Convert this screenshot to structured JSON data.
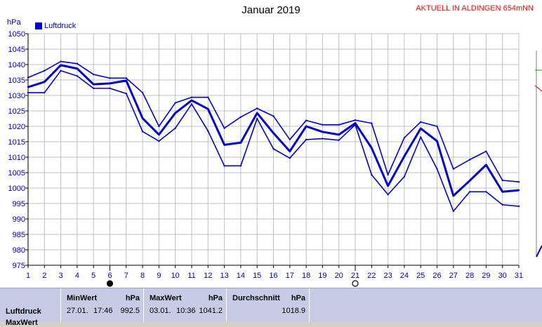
{
  "header": {
    "title": "Januar 2019",
    "aktuell": "AKTUELL IN ALDINGEN 654mNN",
    "unit": "hPa",
    "legend_label": "Luftdruck"
  },
  "colors": {
    "series": "#0000cc",
    "grid": "#c0c0c0",
    "aktuell": "#ff0000",
    "stats_bg": "#c6cbe6"
  },
  "chart_data": {
    "type": "line",
    "title": "Januar 2019",
    "ylabel": "hPa",
    "ylim": [
      975,
      1050
    ],
    "yticks": [
      975,
      980,
      985,
      990,
      995,
      1000,
      1005,
      1010,
      1015,
      1020,
      1025,
      1030,
      1035,
      1040,
      1045,
      1050
    ],
    "x": [
      1,
      2,
      3,
      4,
      5,
      6,
      7,
      8,
      9,
      10,
      11,
      12,
      13,
      14,
      15,
      16,
      17,
      18,
      19,
      20,
      21,
      22,
      23,
      24,
      25,
      26,
      27,
      28,
      29,
      30,
      31
    ],
    "grid": true,
    "legend_position": "top-left",
    "moon_markers": [
      {
        "day": 6,
        "phase": "new"
      },
      {
        "day": 21,
        "phase": "full"
      }
    ],
    "series": [
      {
        "name": "Luftdruck",
        "role": "max",
        "values": [
          1035.8,
          1038.0,
          1041.0,
          1040.3,
          1036.8,
          1035.6,
          1035.6,
          1030.9,
          1020.0,
          1027.6,
          1029.4,
          1029.4,
          1019.4,
          1023.0,
          1025.8,
          1023.3,
          1015.7,
          1021.9,
          1020.5,
          1020.5,
          1022.0,
          1021.0,
          1004.3,
          1016.3,
          1021.4,
          1020.0,
          1006.2,
          1009.2,
          1011.9,
          1002.5,
          1002.0
        ]
      },
      {
        "name": "Luftdruck",
        "role": "mittel",
        "values": [
          1032.7,
          1034.4,
          1039.8,
          1038.7,
          1033.6,
          1033.9,
          1034.8,
          1022.6,
          1017.3,
          1024.3,
          1028.4,
          1025.6,
          1014.0,
          1014.7,
          1024.3,
          1017.8,
          1011.9,
          1020.0,
          1018.2,
          1017.3,
          1021.0,
          1013.0,
          1000.7,
          1010.3,
          1019.3,
          1015.2,
          997.5,
          1002.4,
          1007.5,
          998.8,
          999.3
        ]
      },
      {
        "name": "Luftdruck",
        "role": "min",
        "values": [
          1030.9,
          1030.9,
          1038.0,
          1036.3,
          1032.3,
          1032.3,
          1030.6,
          1018.3,
          1015.2,
          1019.4,
          1027.2,
          1018.5,
          1007.2,
          1007.2,
          1022.5,
          1012.7,
          1009.7,
          1015.7,
          1016.0,
          1015.5,
          1020.5,
          1004.3,
          997.9,
          1003.7,
          1016.5,
          1006.2,
          992.5,
          998.8,
          998.8,
          994.6,
          994.1
        ]
      }
    ]
  },
  "stats": {
    "row_label": "Luftdruck",
    "row_label_2": "MaxWert",
    "columns": [
      {
        "name": "MinWert",
        "unit": "hPa",
        "date": "27.01.",
        "time": "17:46",
        "value": "992.5"
      },
      {
        "name": "MaxWert",
        "unit": "hPa",
        "date": "03.01.",
        "time": "10:36",
        "value": "1041.2"
      },
      {
        "name": "Durchschnitt",
        "unit": "hPa",
        "value": "1018.9"
      }
    ]
  }
}
